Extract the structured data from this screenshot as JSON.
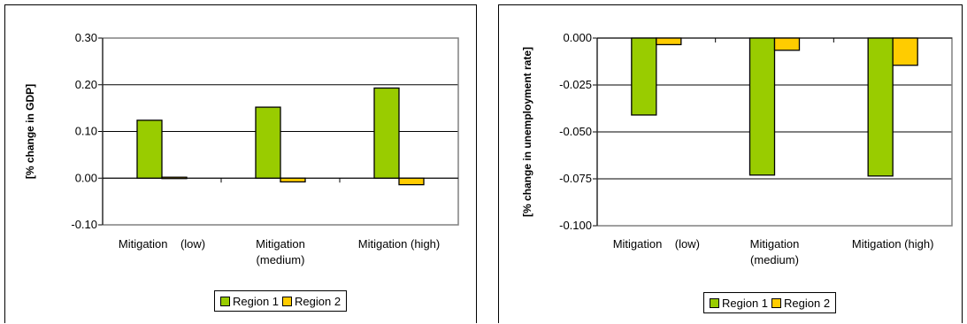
{
  "chart_data": [
    {
      "type": "bar",
      "categories": [
        "Mitigation    (low)",
        "Mitigation (medium)",
        "Mitigation (high)"
      ],
      "category_lines": [
        [
          "Mitigation    (low)"
        ],
        [
          "Mitigation",
          "(medium)"
        ],
        [
          "Mitigation (high)"
        ]
      ],
      "series": [
        {
          "name": "Region 1",
          "values": [
            0.124,
            0.152,
            0.193
          ],
          "color": "#99CC00"
        },
        {
          "name": "Region 2",
          "values": [
            0.002,
            -0.008,
            -0.014
          ],
          "color": "#FFCC00"
        }
      ],
      "ylabel": "[% change in GDP]",
      "ylim": [
        -0.1,
        0.3
      ],
      "yticks": [
        -0.1,
        0.0,
        0.1,
        0.2,
        0.3
      ],
      "ytick_labels": [
        "-0.10",
        "0.00",
        "0.10",
        "0.20",
        "0.30"
      ],
      "grid": true,
      "legend_position": "bottom"
    },
    {
      "type": "bar",
      "categories": [
        "Mitigation    (low)",
        "Mitigation (medium)",
        "Mitigation (high)"
      ],
      "category_lines": [
        [
          "Mitigation    (low)"
        ],
        [
          "Mitigation",
          "(medium)"
        ],
        [
          "Mitigation (high)"
        ]
      ],
      "series": [
        {
          "name": "Region 1",
          "values": [
            -0.041,
            -0.073,
            -0.0735
          ],
          "color": "#99CC00"
        },
        {
          "name": "Region 2",
          "values": [
            -0.0035,
            -0.0065,
            -0.0145
          ],
          "color": "#FFCC00"
        }
      ],
      "ylabel": "[% change in unemployment rate]",
      "ylim": [
        -0.1,
        0.0
      ],
      "yticks": [
        -0.1,
        -0.075,
        -0.05,
        -0.025,
        0.0
      ],
      "ytick_labels": [
        "-0.100",
        "-0.075",
        "-0.050",
        "-0.025",
        "0.000"
      ],
      "grid": true,
      "legend_position": "bottom"
    }
  ]
}
